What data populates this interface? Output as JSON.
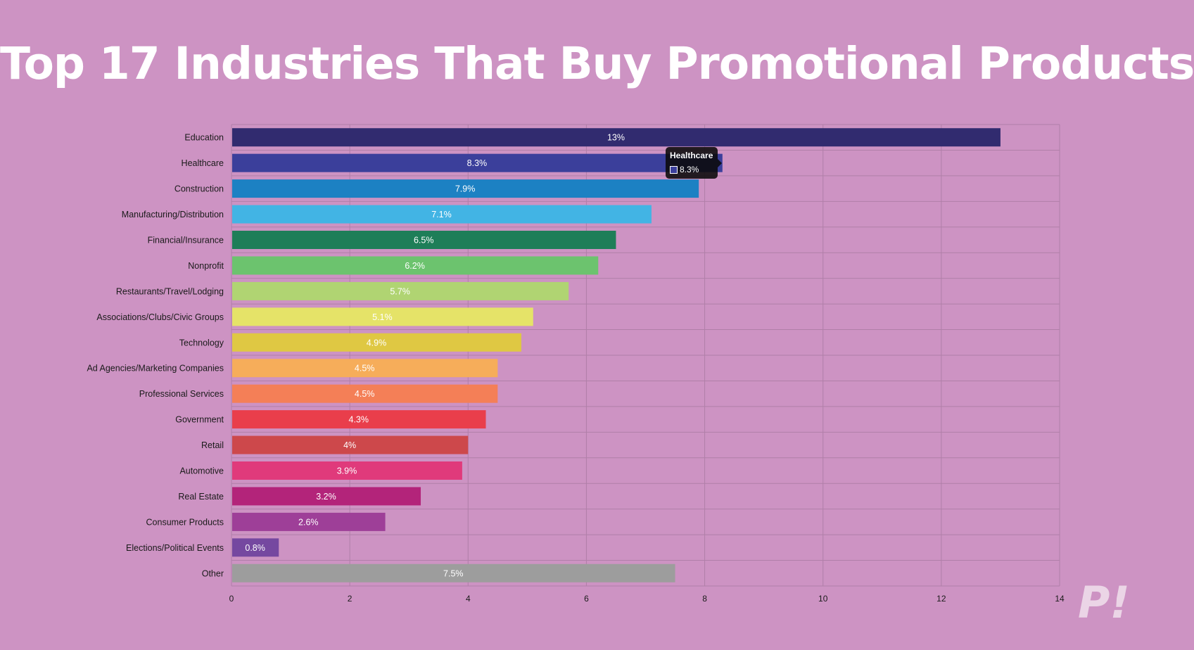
{
  "title": "Top 17 Industries That Buy Promotional Products",
  "tooltip": {
    "title": "Healthcare",
    "value": "8.3%",
    "color": "#3b3f9b"
  },
  "logo": {
    "text": "P!",
    "color": "#ebd5e6"
  },
  "colors": {
    "background": "#cd93c3",
    "grid": "#b07fa8",
    "axis_text": "#1a1a1a",
    "bar_text": "#ffffff"
  },
  "chart_data": {
    "type": "bar",
    "orientation": "horizontal",
    "title": "Top 17 Industries That Buy Promotional Products",
    "xlabel": "",
    "ylabel": "",
    "xlim": [
      0,
      14
    ],
    "x_ticks": [
      0,
      2,
      4,
      6,
      8,
      10,
      12,
      14
    ],
    "grid": true,
    "legend": "none",
    "categories": [
      "Education",
      "Healthcare",
      "Construction",
      "Manufacturing/Distribution",
      "Financial/Insurance",
      "Nonprofit",
      "Restaurants/Travel/Lodging",
      "Associations/Clubs/Civic Groups",
      "Technology",
      "Ad Agencies/Marketing Companies",
      "Professional Services",
      "Government",
      "Retail",
      "Automotive",
      "Real Estate",
      "Consumer Products",
      "Elections/Political Events",
      "Other"
    ],
    "values": [
      13,
      8.3,
      7.9,
      7.1,
      6.5,
      6.2,
      5.7,
      5.1,
      4.9,
      4.5,
      4.5,
      4.3,
      4,
      3.9,
      3.2,
      2.6,
      0.8,
      7.5
    ],
    "data_labels": [
      "13%",
      "8.3%",
      "7.9%",
      "7.1%",
      "6.5%",
      "6.2%",
      "5.7%",
      "5.1%",
      "4.9%",
      "4.5%",
      "4.5%",
      "4.3%",
      "4%",
      "3.9%",
      "3.2%",
      "2.6%",
      "0.8%",
      "7.5%"
    ],
    "bar_colors": [
      "#312b6f",
      "#3b3f9b",
      "#1c81c3",
      "#42b4e4",
      "#1e7e58",
      "#6cc36e",
      "#b0d472",
      "#e5e368",
      "#dfc843",
      "#f6ad5a",
      "#f47f57",
      "#e93e4b",
      "#cd484b",
      "#e03a7b",
      "#b3247a",
      "#9e3f98",
      "#7548a0",
      "#9d9d9d"
    ]
  }
}
